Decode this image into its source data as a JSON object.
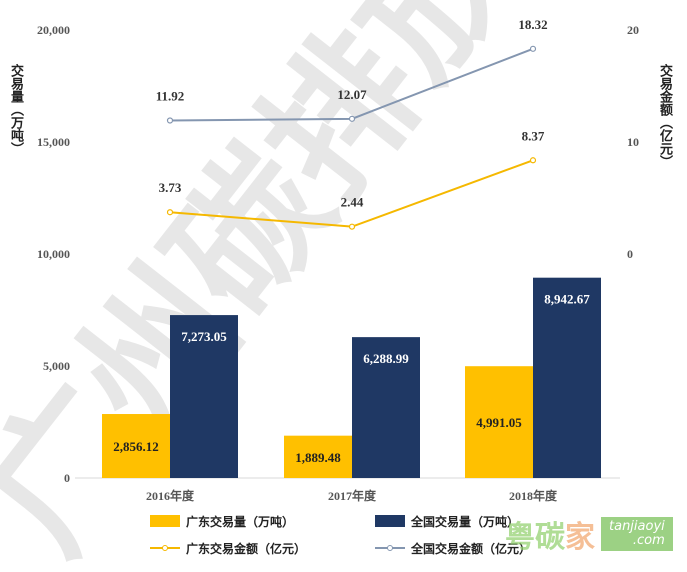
{
  "chart_data": {
    "type": "bar+line",
    "categories": [
      "2016年度",
      "2017年度",
      "2018年度"
    ],
    "ylabel": "交易量（万吨）",
    "y2label": "交易金额（亿元）",
    "ylim": [
      0,
      20000
    ],
    "y2lim": [
      0,
      20
    ],
    "yticks": [
      "0",
      "5,000",
      "10,000",
      "15,000",
      "20,000"
    ],
    "y2ticks": [
      "0",
      "10",
      "20"
    ],
    "ytick_values": [
      0,
      5000,
      10000,
      15000,
      20000
    ],
    "y2tick_values": [
      0,
      10,
      20
    ],
    "series": [
      {
        "name": "广东交易量（万吨）",
        "kind": "bar",
        "axis": "left",
        "color": "#FFC000",
        "values": [
          2856.12,
          1889.48,
          4991.05
        ],
        "labels": [
          "2,856.12",
          "1,889.48",
          "4,991.05"
        ]
      },
      {
        "name": "全国交易量（万吨）",
        "kind": "bar",
        "axis": "left",
        "color": "#1F3864",
        "values": [
          7273.05,
          6288.99,
          8942.67
        ],
        "labels": [
          "7,273.05",
          "6,288.99",
          "8,942.67"
        ]
      },
      {
        "name": "广东交易金额（亿元）",
        "kind": "line",
        "axis": "right",
        "color": "#F5B800",
        "values": [
          3.73,
          2.44,
          8.37
        ],
        "labels": [
          "3.73",
          "2.44",
          "8.37"
        ]
      },
      {
        "name": "全国交易金额（亿元）",
        "kind": "line",
        "axis": "right",
        "color": "#8496B0",
        "values": [
          11.92,
          12.07,
          18.32
        ],
        "labels": [
          "11.92",
          "12.07",
          "18.32"
        ]
      }
    ],
    "legend": "bottom",
    "grid": false
  },
  "watermark": "广州碳排放",
  "logo": {
    "text": "粤碳家",
    "site": "tanjiaoyi",
    "domain": ".com"
  }
}
